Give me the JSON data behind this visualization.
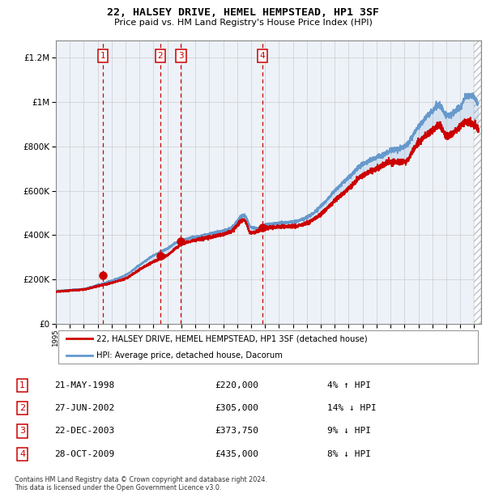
{
  "title": "22, HALSEY DRIVE, HEMEL HEMPSTEAD, HP1 3SF",
  "subtitle": "Price paid vs. HM Land Registry's House Price Index (HPI)",
  "property_label": "22, HALSEY DRIVE, HEMEL HEMPSTEAD, HP1 3SF (detached house)",
  "hpi_label": "HPI: Average price, detached house, Dacorum",
  "footnote": "Contains HM Land Registry data © Crown copyright and database right 2024.\nThis data is licensed under the Open Government Licence v3.0.",
  "sales": [
    {
      "num": 1,
      "date": "21-MAY-1998",
      "price": 220000,
      "pct": "4%",
      "dir": "↑",
      "x_year": 1998.38
    },
    {
      "num": 2,
      "date": "27-JUN-2002",
      "price": 305000,
      "pct": "14%",
      "dir": "↓",
      "x_year": 2002.49
    },
    {
      "num": 3,
      "date": "22-DEC-2003",
      "price": 373750,
      "pct": "9%",
      "dir": "↓",
      "x_year": 2003.97
    },
    {
      "num": 4,
      "date": "28-OCT-2009",
      "price": 435000,
      "pct": "8%",
      "dir": "↓",
      "x_year": 2009.82
    }
  ],
  "ylim": [
    0,
    1280000
  ],
  "xlim_start": 1995.0,
  "xlim_end": 2025.5,
  "property_color": "#cc0000",
  "hpi_color": "#6699cc",
  "bg_color": "#edf2f8",
  "grid_color": "#cccccc",
  "sale_dot_color": "#cc0000",
  "vline_color": "#cc0000",
  "hpi_anchors": {
    "1995.0": 148000,
    "1996.0": 153000,
    "1997.0": 158000,
    "1998.0": 175000,
    "1999.0": 195000,
    "2000.0": 220000,
    "2001.0": 265000,
    "2002.0": 308000,
    "2003.0": 340000,
    "2004.0": 378000,
    "2005.0": 390000,
    "2006.0": 405000,
    "2007.5": 430000,
    "2008.5": 490000,
    "2009.0": 435000,
    "2009.5": 430000,
    "2010.0": 445000,
    "2011.0": 455000,
    "2012.0": 460000,
    "2013.0": 480000,
    "2014.0": 530000,
    "2015.0": 600000,
    "2016.0": 660000,
    "2017.0": 720000,
    "2018.0": 750000,
    "2019.0": 780000,
    "2020.0": 800000,
    "2021.0": 890000,
    "2022.0": 960000,
    "2022.5": 990000,
    "2023.0": 940000,
    "2024.0": 980000,
    "2024.5": 1030000,
    "2025.0": 1020000
  },
  "prop_anchors": {
    "1995.0": 145000,
    "1996.0": 150000,
    "1997.0": 155000,
    "1998.0": 170000,
    "1999.0": 185000,
    "2000.0": 205000,
    "2001.0": 245000,
    "2002.0": 280000,
    "2003.0": 310000,
    "2004.0": 358000,
    "2005.0": 378000,
    "2006.0": 390000,
    "2007.5": 415000,
    "2008.5": 468000,
    "2009.0": 410000,
    "2009.5": 418000,
    "2010.0": 432000,
    "2011.0": 438000,
    "2012.0": 440000,
    "2013.0": 455000,
    "2014.0": 495000,
    "2015.0": 555000,
    "2016.0": 610000,
    "2017.0": 670000,
    "2018.0": 700000,
    "2019.0": 730000,
    "2020.0": 730000,
    "2021.0": 820000,
    "2022.0": 870000,
    "2022.5": 900000,
    "2023.0": 845000,
    "2024.0": 890000,
    "2024.5": 910000,
    "2025.0": 900000
  }
}
